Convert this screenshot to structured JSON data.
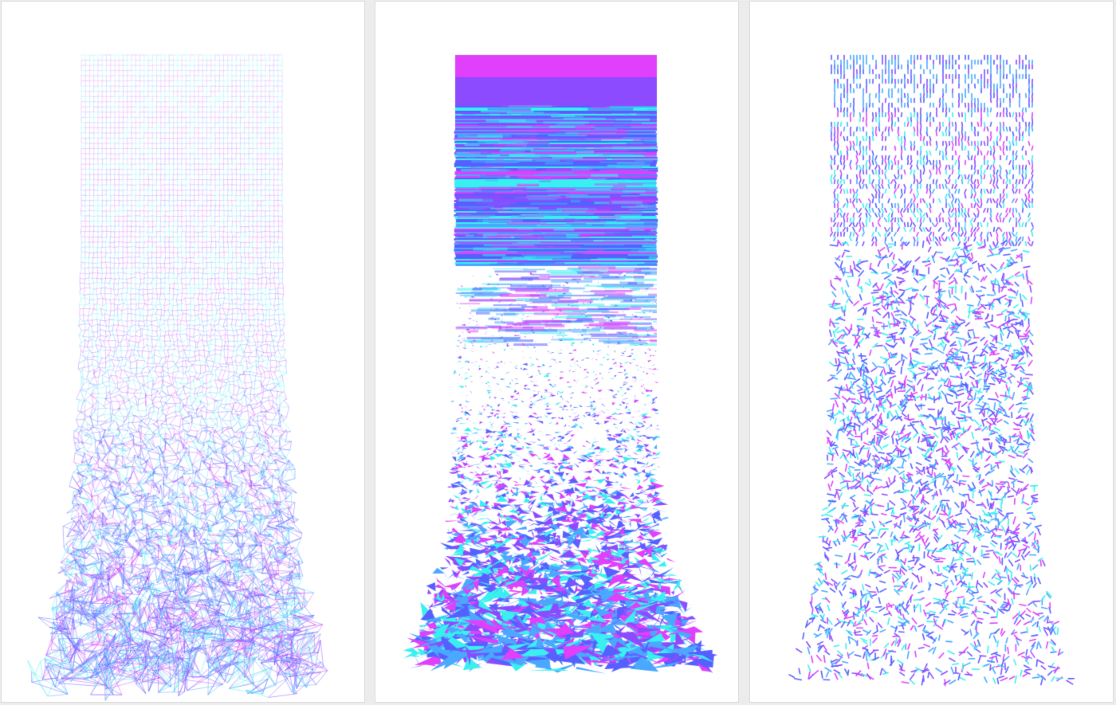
{
  "colors": {
    "magenta": "#e040fb",
    "violet": "#8c4bff",
    "blue": "#5560ff",
    "sky": "#4aa8ff",
    "cyan": "#39f0f0",
    "background": "#ffffff"
  },
  "panels": [
    {
      "name": "wireframe-grid-panel",
      "style": "wire-mesh"
    },
    {
      "name": "shaded-mesh-panel",
      "style": "filled-triangles"
    },
    {
      "name": "dash-scatter-panel",
      "style": "short-dashes"
    }
  ]
}
